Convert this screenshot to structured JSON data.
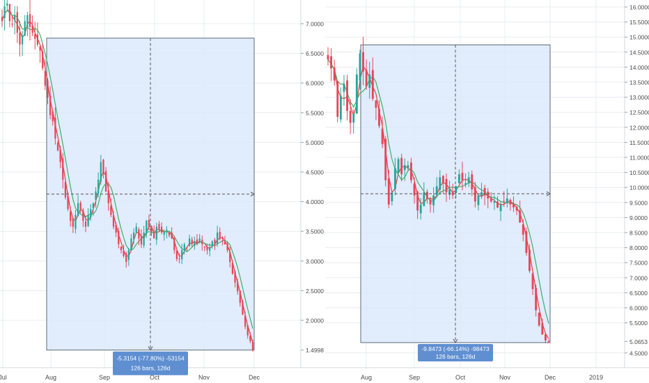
{
  "colors": {
    "up": "#26a69a",
    "down": "#e8455a",
    "ma_fast": "#e0413a",
    "ma_slow": "#3fae6a",
    "range_fill": "#dce9fb",
    "range_stroke": "#5b6b7a",
    "label_bg": "#5f8fd1",
    "grid": "#e9ecef",
    "axis_text": "#4a4a4a"
  },
  "chart_data": [
    {
      "type": "candlestick",
      "x_labels": [
        "Jul",
        "Aug",
        "Sep",
        "Oct",
        "Nov",
        "Dec"
      ],
      "y_ticks": [
        "7.0000",
        "6.5000",
        "6.0000",
        "5.5000",
        "5.0000",
        "4.5000",
        "4.0000",
        "3.5000",
        "3.0000",
        "2.5000",
        "2.0000",
        "1.4998"
      ],
      "ylim": [
        1.2,
        7.4
      ],
      "last_price": "1.4998",
      "range_measure": {
        "start": 6.81,
        "end": 1.5,
        "label_line1": "-5.3154 (-77.80%) -53154",
        "label_line2": "126 bars, 126d"
      },
      "series": [
        {
          "name": "price",
          "closes": [
            7.1,
            7.35,
            7.4,
            7.1,
            7.05,
            7.2,
            6.9,
            6.7,
            6.85,
            7.1,
            7.2,
            7.0,
            6.9,
            6.8,
            6.7,
            6.6,
            6.3,
            6.0,
            5.8,
            5.5,
            5.4,
            5.1,
            4.9,
            4.7,
            4.4,
            4.1,
            3.9,
            3.7,
            3.6,
            3.8,
            4.0,
            3.9,
            3.7,
            3.6,
            3.8,
            3.9,
            4.0,
            4.2,
            4.4,
            4.7,
            4.5,
            4.2,
            4.0,
            3.8,
            3.6,
            3.5,
            3.3,
            3.2,
            3.1,
            3.0,
            3.2,
            3.4,
            3.5,
            3.6,
            3.4,
            3.3,
            3.5,
            3.7,
            3.6,
            3.5,
            3.4,
            3.6,
            3.55,
            3.5,
            3.5,
            3.55,
            3.45,
            3.4,
            3.2,
            3.05,
            3.05,
            3.2,
            3.3,
            3.25,
            3.4,
            3.3,
            3.35,
            3.3,
            3.4,
            3.3,
            3.25,
            3.2,
            3.25,
            3.35,
            3.3,
            3.5,
            3.4,
            3.35,
            3.3,
            3.2,
            3.0,
            2.8,
            2.65,
            2.5,
            2.3,
            2.1,
            1.9,
            1.75,
            1.65,
            1.5
          ]
        }
      ]
    },
    {
      "type": "candlestick",
      "x_labels": [
        "Aug",
        "Sep",
        "Oct",
        "Nov",
        "Dec",
        "2019"
      ],
      "y_ticks": [
        "16.0000",
        "15.5000",
        "15.0000",
        "14.5000",
        "14.0000",
        "13.5000",
        "13.0000",
        "12.5000",
        "12.0000",
        "11.5000",
        "11.0000",
        "10.5000",
        "10.0000",
        "9.5000",
        "9.0000",
        "8.5000",
        "8.0000",
        "7.5000",
        "7.0000",
        "6.5000",
        "6.0000",
        "5.5000",
        "5.0653",
        "4.5000"
      ],
      "ylim": [
        4.2,
        16.25
      ],
      "last_price": "5.0653",
      "range_measure": {
        "start": 14.88,
        "end": 5.03,
        "label_line1": "-9.8473 (-66.14%) -98473",
        "label_line2": "126 bars, 126d"
      },
      "series": [
        {
          "name": "price",
          "closes": [
            14.4,
            14.1,
            13.7,
            12.5,
            13.2,
            13.6,
            12.7,
            12.3,
            12.6,
            13.9,
            14.6,
            14.0,
            13.5,
            13.9,
            13.1,
            12.8,
            12.2,
            11.6,
            10.4,
            9.6,
            10.0,
            10.8,
            11.1,
            10.6,
            10.9,
            10.9,
            10.4,
            9.9,
            9.4,
            9.6,
            10.0,
            9.8,
            9.6,
            9.9,
            10.2,
            10.5,
            10.3,
            10.0,
            10.1,
            9.9,
            10.2,
            10.6,
            10.4,
            10.3,
            10.5,
            10.1,
            9.7,
            9.9,
            10.0,
            9.9,
            9.8,
            9.7,
            9.7,
            9.5,
            9.6,
            9.7,
            9.8,
            9.6,
            9.5,
            9.4,
            9.0,
            8.6,
            8.0,
            7.4,
            6.8,
            6.1,
            5.6,
            5.3,
            5.1,
            5.07
          ]
        }
      ]
    }
  ]
}
